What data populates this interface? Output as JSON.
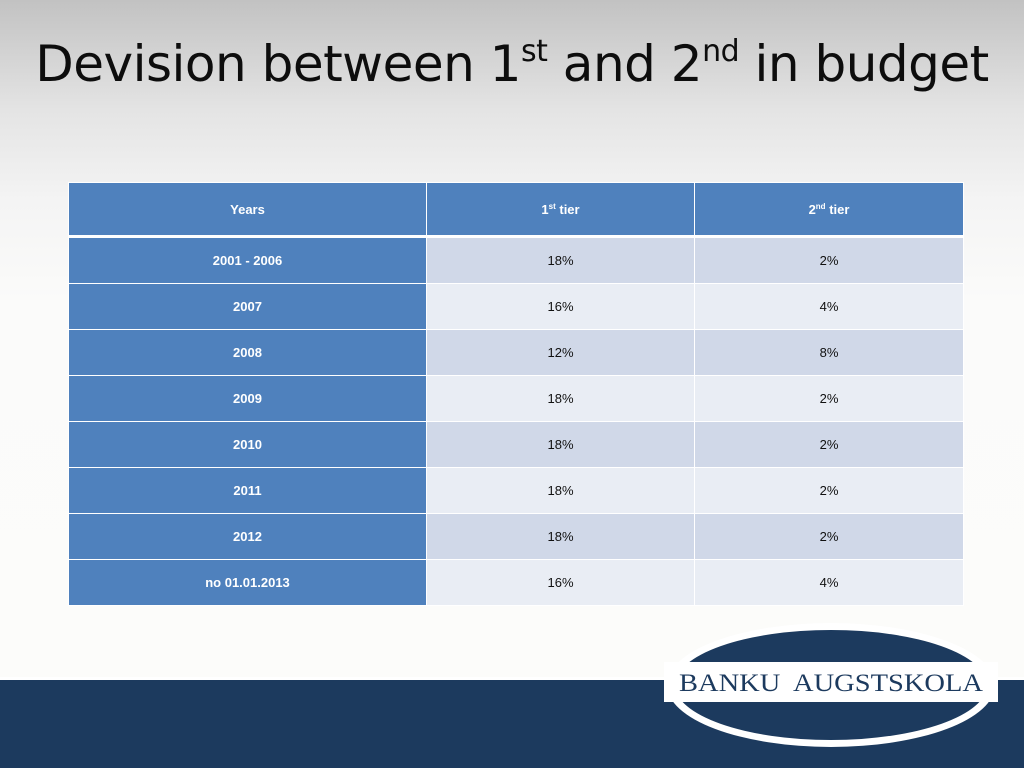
{
  "slide": {
    "title_part1": "Devision between 1",
    "title_sup1": "st",
    "title_part2": " and 2",
    "title_sup2": "nd",
    "title_part3": " in budget"
  },
  "table": {
    "headers": {
      "years": "Years",
      "tier1_num": "1",
      "tier1_sup": "st",
      "tier1_word": " tier",
      "tier2_num": "2",
      "tier2_sup": "nd",
      "tier2_word": " tier"
    },
    "rows": [
      {
        "year": "2001 - 2006",
        "tier1": "18%",
        "tier2": "2%"
      },
      {
        "year": "2007",
        "tier1": "16%",
        "tier2": "4%"
      },
      {
        "year": "2008",
        "tier1": "12%",
        "tier2": "8%"
      },
      {
        "year": "2009",
        "tier1": "18%",
        "tier2": "2%"
      },
      {
        "year": "2010",
        "tier1": "18%",
        "tier2": "2%"
      },
      {
        "year": "2011",
        "tier1": "18%",
        "tier2": "2%"
      },
      {
        "year": "2012",
        "tier1": "18%",
        "tier2": "2%"
      },
      {
        "year": "no 01.01.2013",
        "tier1": "16%",
        "tier2": "4%"
      }
    ]
  },
  "logo": {
    "text": "BANKU  AUGSTSKOLA"
  },
  "colors": {
    "header_blue": "#4f81bd",
    "row_band_dark": "#d0d8e8",
    "row_band_light": "#e9edf4",
    "footer_navy": "#1c3a5e"
  }
}
